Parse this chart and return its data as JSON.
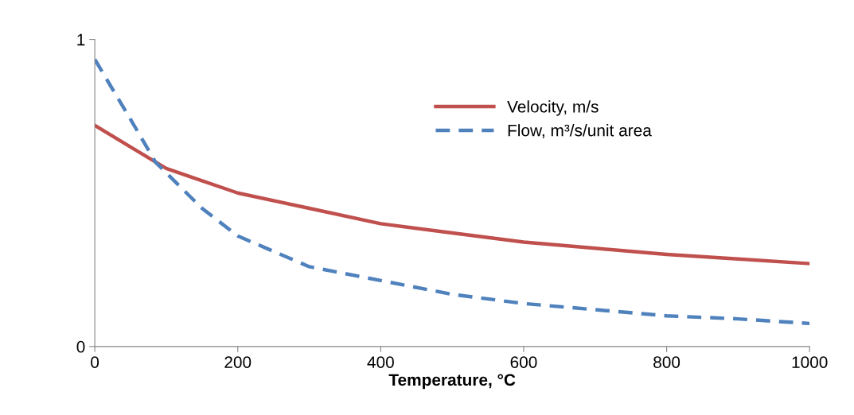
{
  "chart_data": {
    "type": "line",
    "xlabel": "Temperature, °C",
    "xlim": [
      0,
      1000
    ],
    "xticks": [
      0,
      200,
      400,
      600,
      800,
      1000
    ],
    "ylim": [
      0,
      1
    ],
    "yticks": [
      0,
      1
    ],
    "grid": false,
    "legend": "top right",
    "marker": "none",
    "series": [
      {
        "name": "Velocity, m/s",
        "color": "#c0504d",
        "line_style": "solid",
        "x": [
          0,
          50,
          100,
          150,
          200,
          300,
          400,
          500,
          600,
          700,
          800,
          900,
          1000
        ],
        "values": [
          0.72,
          0.65,
          0.58,
          0.54,
          0.5,
          0.45,
          0.4,
          0.37,
          0.34,
          0.32,
          0.3,
          0.285,
          0.27
        ]
      },
      {
        "name": "Flow, m³/s/unit area",
        "color": "#4f81bd",
        "line_style": "dashed",
        "x": [
          0,
          50,
          85,
          150,
          200,
          300,
          400,
          500,
          600,
          700,
          800,
          900,
          1000
        ],
        "values": [
          0.935,
          0.74,
          0.6,
          0.45,
          0.36,
          0.26,
          0.215,
          0.17,
          0.14,
          0.12,
          0.1,
          0.09,
          0.075
        ]
      }
    ]
  }
}
